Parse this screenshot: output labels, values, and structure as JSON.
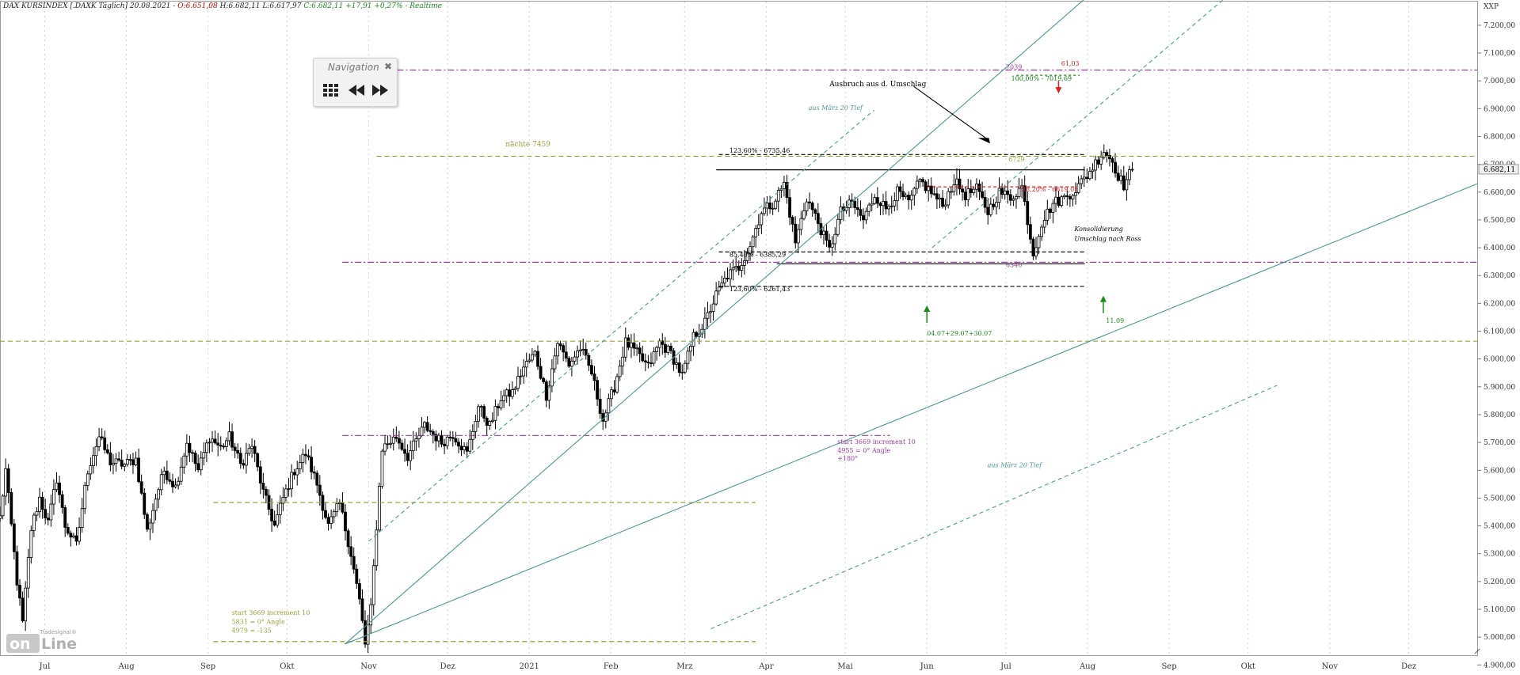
{
  "header": {
    "name": "DAX KURSINDEX [.DAXK Täglich] 20.08.2021 -",
    "open": "O:6.651,08",
    "high_low": "H:6.682,11 L:6.617,97",
    "close_change": "C:6.682,11 +17,91 +0,27% - Realtime"
  },
  "navigation": {
    "title": "Navigation",
    "close": "✖"
  },
  "logo": {
    "brand_small": "Tradesignal®",
    "brand_big": "onLine"
  },
  "chart_data": {
    "type": "candlestick",
    "y_axis_label": "XXP",
    "ylim": [
      4935,
      7285
    ],
    "y_ticks": [
      "4.900,00",
      "5.000,00",
      "5.100,00",
      "5.200,00",
      "5.300,00",
      "5.400,00",
      "5.500,00",
      "5.600,00",
      "5.700,00",
      "5.800,00",
      "5.900,00",
      "6.000,00",
      "6.100,00",
      "6.200,00",
      "6.300,00",
      "6.400,00",
      "6.500,00",
      "6.600,00",
      "6.700,00",
      "6.800,00",
      "6.900,00",
      "7.000,00",
      "7.100,00",
      "7.200,00"
    ],
    "last_price_label": "6.682,11",
    "x_labels": [
      {
        "label": "Jul",
        "d": 17
      },
      {
        "label": "Aug",
        "d": 48
      },
      {
        "label": "Sep",
        "d": 79
      },
      {
        "label": "Okt",
        "d": 109
      },
      {
        "label": "Nov",
        "d": 140
      },
      {
        "label": "Dez",
        "d": 170
      },
      {
        "label": "2021",
        "d": 201
      },
      {
        "label": "Feb",
        "d": 232
      },
      {
        "label": "Mrz",
        "d": 260
      },
      {
        "label": "Apr",
        "d": 291
      },
      {
        "label": "Mai",
        "d": 321
      },
      {
        "label": "Jun",
        "d": 352
      },
      {
        "label": "Jul",
        "d": 382
      },
      {
        "label": "Aug",
        "d": 413
      },
      {
        "label": "Sep",
        "d": 444
      },
      {
        "label": "Okt",
        "d": 474
      },
      {
        "label": "Nov",
        "d": 505
      },
      {
        "label": "Dez",
        "d": 535
      }
    ],
    "date_range_days": [
      0,
      561
    ],
    "last_candle_day": 430,
    "price_anchors": [
      [
        0,
        5430
      ],
      [
        2,
        5600
      ],
      [
        6,
        5200
      ],
      [
        8,
        5050
      ],
      [
        11,
        5390
      ],
      [
        14,
        5500
      ],
      [
        17,
        5410
      ],
      [
        20,
        5570
      ],
      [
        23,
        5400
      ],
      [
        27,
        5330
      ],
      [
        31,
        5600
      ],
      [
        35,
        5720
      ],
      [
        39,
        5630
      ],
      [
        44,
        5620
      ],
      [
        48,
        5640
      ],
      [
        52,
        5380
      ],
      [
        55,
        5500
      ],
      [
        58,
        5600
      ],
      [
        62,
        5540
      ],
      [
        66,
        5700
      ],
      [
        70,
        5600
      ],
      [
        74,
        5720
      ],
      [
        78,
        5680
      ],
      [
        81,
        5720
      ],
      [
        85,
        5620
      ],
      [
        89,
        5690
      ],
      [
        93,
        5520
      ],
      [
        97,
        5400
      ],
      [
        100,
        5500
      ],
      [
        104,
        5600
      ],
      [
        108,
        5660
      ],
      [
        112,
        5550
      ],
      [
        116,
        5400
      ],
      [
        120,
        5480
      ],
      [
        124,
        5300
      ],
      [
        127,
        5130
      ],
      [
        129,
        4975
      ],
      [
        131,
        5100
      ],
      [
        133,
        5400
      ],
      [
        135,
        5680
      ],
      [
        140,
        5720
      ],
      [
        144,
        5650
      ],
      [
        150,
        5760
      ],
      [
        156,
        5700
      ],
      [
        160,
        5730
      ],
      [
        165,
        5660
      ],
      [
        169,
        5830
      ],
      [
        173,
        5760
      ],
      [
        177,
        5860
      ],
      [
        181,
        5880
      ],
      [
        185,
        5970
      ],
      [
        189,
        6020
      ],
      [
        193,
        5870
      ],
      [
        197,
        6060
      ],
      [
        201,
        5980
      ],
      [
        205,
        6040
      ],
      [
        209,
        5950
      ],
      [
        213,
        5780
      ],
      [
        217,
        5900
      ],
      [
        221,
        6060
      ],
      [
        225,
        6020
      ],
      [
        229,
        5970
      ],
      [
        233,
        6060
      ],
      [
        237,
        6020
      ],
      [
        241,
        5940
      ],
      [
        245,
        6080
      ],
      [
        249,
        6130
      ],
      [
        253,
        6230
      ],
      [
        257,
        6300
      ],
      [
        261,
        6330
      ],
      [
        265,
        6410
      ],
      [
        269,
        6530
      ],
      [
        273,
        6560
      ],
      [
        277,
        6630
      ],
      [
        281,
        6420
      ],
      [
        285,
        6580
      ],
      [
        289,
        6490
      ],
      [
        293,
        6390
      ],
      [
        297,
        6530
      ],
      [
        301,
        6560
      ],
      [
        305,
        6500
      ],
      [
        309,
        6590
      ],
      [
        313,
        6540
      ],
      [
        317,
        6600
      ],
      [
        321,
        6560
      ],
      [
        325,
        6640
      ],
      [
        329,
        6600
      ],
      [
        333,
        6550
      ],
      [
        337,
        6640
      ],
      [
        341,
        6590
      ],
      [
        345,
        6610
      ],
      [
        349,
        6530
      ],
      [
        353,
        6600
      ],
      [
        357,
        6580
      ],
      [
        361,
        6620
      ],
      [
        365,
        6380
      ],
      [
        368,
        6490
      ],
      [
        372,
        6560
      ],
      [
        376,
        6580
      ],
      [
        380,
        6610
      ],
      [
        384,
        6660
      ],
      [
        388,
        6720
      ],
      [
        390,
        6750
      ],
      [
        393,
        6710
      ],
      [
        395,
        6660
      ],
      [
        397,
        6625
      ],
      [
        400,
        6682
      ]
    ],
    "annotations": {
      "naechste": "nächte 7459",
      "ausbruch": "Ausbruch aus d. Umschlag",
      "maerz_tief_1": "aus März 20 Tief",
      "maerz_tief_2": "aus März 20 Tief",
      "fib_123_upper": "123,60% - 6735,46",
      "fib_85": "85,40% - 6385,29",
      "fib_123_lower": "123,60% - 6261,43",
      "fib_38": "38,20% - 6619,01",
      "fib_100": "100,00% - 7019,69",
      "level_7039": "7039",
      "level_6729": "6729",
      "level_6346": "6346",
      "level_6103": "61,03",
      "konsolidierung_1": "Konsolidierung",
      "konsolidierung_2": "Umschlag nach Ross",
      "dates_green": "04.07+29.07+30.07",
      "date_1109": "11.09",
      "gann_purple_1": "start 3669 increment 10",
      "gann_purple_2": "4955 = 0° Angle",
      "gann_purple_3": "+180°",
      "gann_olive_1": "start 3669 increment 10",
      "gann_olive_2": "5831 = 0° Angle",
      "gann_olive_3": "4979 = -135"
    },
    "colors": {
      "grid": "#d4d4d4",
      "candle": "#000000",
      "teal": "#4a9a9a",
      "olive": "#9aa03a",
      "purple": "#9a3aa0",
      "red": "#e02020",
      "green": "#1a8a1a"
    }
  }
}
